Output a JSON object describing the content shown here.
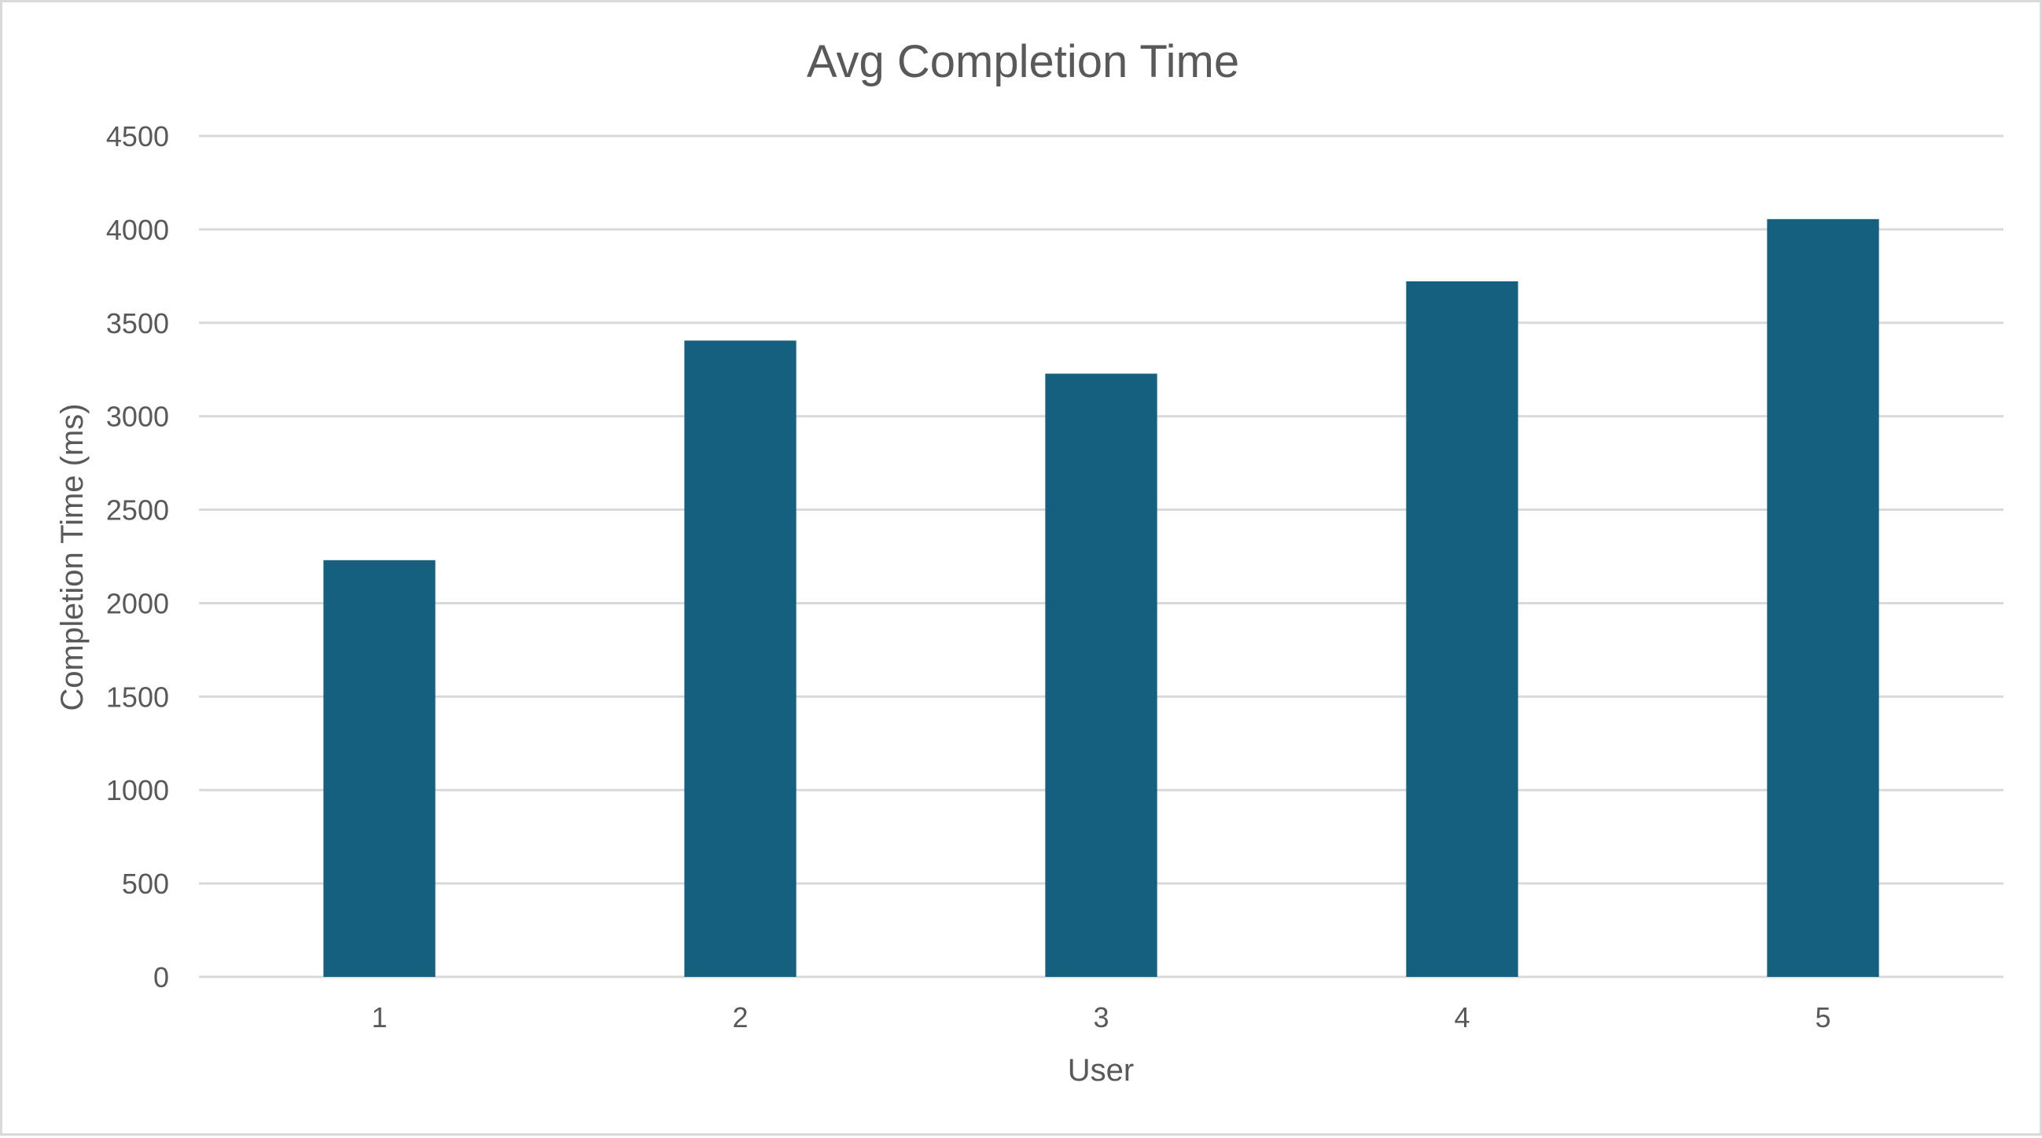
{
  "chart_data": {
    "type": "bar",
    "title": "Avg Completion Time",
    "xlabel": "User",
    "ylabel": "Completion Time (ms)",
    "categories": [
      "1",
      "2",
      "3",
      "4",
      "5"
    ],
    "series": [
      {
        "values": [
          2230,
          3405,
          3228,
          3722,
          4055
        ]
      }
    ],
    "ylim": [
      0,
      4500
    ],
    "yticks": [
      "0",
      "500",
      "1000",
      "1500",
      "2000",
      "2500",
      "3000",
      "3500",
      "4000",
      "4500"
    ],
    "grid": true,
    "legend": "none",
    "bar_color": "#16607f"
  }
}
